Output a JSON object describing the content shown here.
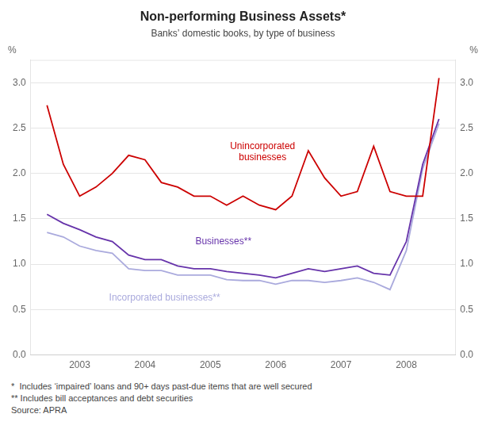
{
  "chart_data": {
    "type": "line",
    "title": "Non-performing Business Assets*",
    "subtitle": "Banks’ domestic books, by type of business",
    "ylabel": "%",
    "y2label": "%",
    "footnotes": [
      "*  Includes ‘impaired’ loans and 90+ days past-due items that are well secured",
      "** Includes bill acceptances and debt securities",
      "Source: APRA"
    ],
    "x": [
      2002.5,
      2002.75,
      2003.0,
      2003.25,
      2003.5,
      2003.75,
      2004.0,
      2004.25,
      2004.5,
      2004.75,
      2005.0,
      2005.25,
      2005.5,
      2005.75,
      2006.0,
      2006.25,
      2006.5,
      2006.75,
      2007.0,
      2007.25,
      2007.5,
      2007.75,
      2008.0,
      2008.25,
      2008.5
    ],
    "xlim": [
      2002.25,
      2008.75
    ],
    "xticks": [
      2003,
      2004,
      2005,
      2006,
      2007,
      2008
    ],
    "ylim": [
      0,
      3.25
    ],
    "yticks": [
      {
        "value": 0,
        "label": "0.0"
      },
      0.5,
      {
        "value": 1,
        "label": "1.0"
      },
      1.5,
      {
        "value": 2,
        "label": "2.0"
      },
      2.5,
      {
        "value": 3,
        "label": "3.0"
      }
    ],
    "y2lim": [
      0,
      3.25
    ],
    "y2ticks": [
      {
        "value": 0,
        "label": "0.0"
      },
      0.5,
      {
        "value": 1,
        "label": "1.0"
      },
      1.5,
      {
        "value": 2,
        "label": "2.0"
      },
      2.5,
      {
        "value": 3,
        "label": "3.0"
      }
    ],
    "grid": true,
    "series": [
      {
        "color": "#cc0000",
        "values": [
          2.75,
          2.1,
          1.75,
          1.85,
          2.0,
          2.2,
          2.15,
          1.9,
          1.85,
          1.75,
          1.75,
          1.65,
          1.75,
          1.65,
          1.6,
          1.75,
          2.25,
          1.95,
          1.75,
          1.8,
          2.3,
          1.8,
          1.75,
          1.75,
          3.05
        ]
      },
      {
        "color": "#6633aa",
        "values": [
          1.55,
          1.45,
          1.38,
          1.3,
          1.25,
          1.1,
          1.05,
          1.05,
          0.98,
          0.95,
          0.95,
          0.92,
          0.9,
          0.88,
          0.85,
          0.9,
          0.95,
          0.92,
          0.95,
          0.98,
          0.9,
          0.88,
          1.25,
          2.1,
          2.6
        ]
      },
      {
        "color": "#aaaadd",
        "values": [
          1.35,
          1.3,
          1.2,
          1.15,
          1.12,
          0.95,
          0.93,
          0.93,
          0.88,
          0.88,
          0.88,
          0.83,
          0.82,
          0.82,
          0.78,
          0.82,
          0.82,
          0.8,
          0.82,
          0.85,
          0.8,
          0.72,
          1.15,
          2.05,
          2.55
        ]
      }
    ],
    "annotations": [
      {
        "x": 2005.8,
        "y": 2.12,
        "text": "Unincorporated\nbusinesses",
        "color": "#cc0000"
      },
      {
        "x": 2005.2,
        "y": 1.2,
        "text": "Businesses**",
        "color": "#6633aa"
      },
      {
        "x": 2004.3,
        "y": 0.58,
        "text": "Incorporated businesses**",
        "color": "#aaaadd"
      }
    ]
  }
}
